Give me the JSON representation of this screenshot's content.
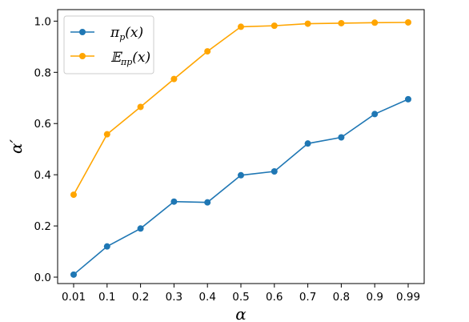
{
  "chart_data": {
    "type": "line",
    "categories": [
      "0.01",
      "0.1",
      "0.2",
      "0.3",
      "0.4",
      "0.5",
      "0.6",
      "0.7",
      "0.8",
      "0.9",
      "0.99"
    ],
    "xlabel": "α",
    "ylabel": "α′",
    "ylim": [
      -0.025,
      1.045
    ],
    "yticks": [
      "0.0",
      "0.2",
      "0.4",
      "0.6",
      "0.8",
      "1.0"
    ],
    "grid": false,
    "legend_position": "top-left",
    "series": [
      {
        "name": "πp(x)",
        "name_main": "π",
        "name_sub": "p",
        "name_tail": "(x)",
        "color": "#1f77b4",
        "values": [
          0.01,
          0.12,
          0.19,
          0.295,
          0.292,
          0.398,
          0.413,
          0.522,
          0.546,
          0.637,
          0.695
        ]
      },
      {
        "name": "𝔼πp(x)",
        "name_main": "𝔼",
        "name_sub": "πp",
        "name_tail": "(x)",
        "color": "#ffa500",
        "values": [
          0.322,
          0.558,
          0.665,
          0.774,
          0.882,
          0.978,
          0.982,
          0.99,
          0.992,
          0.994,
          0.995
        ]
      }
    ]
  }
}
